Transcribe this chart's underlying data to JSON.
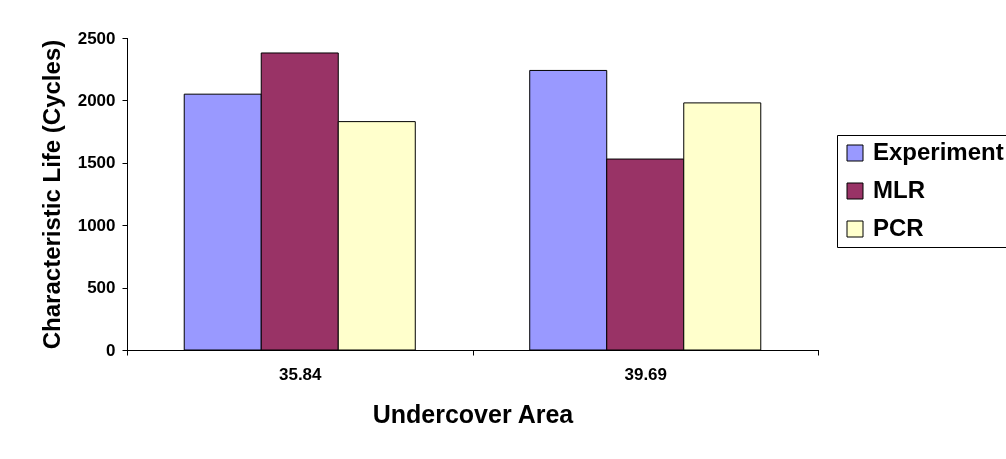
{
  "chart_data": {
    "type": "bar",
    "xlabel": "Undercover Area",
    "ylabel": "Characteristic Life (Cycles)",
    "categories": [
      "35.84",
      "39.69"
    ],
    "series": [
      {
        "name": "Experiment",
        "color": "#9999ff",
        "values": [
          2050,
          2240
        ]
      },
      {
        "name": "MLR",
        "color": "#993366",
        "values": [
          2380,
          1530
        ]
      },
      {
        "name": "PCR",
        "color": "#ffffcc",
        "values": [
          1830,
          1980
        ]
      }
    ],
    "ylim": [
      0,
      2500
    ],
    "yticks": [
      0,
      500,
      1000,
      1500,
      2000,
      2500
    ],
    "grid": false,
    "legend": "right"
  }
}
